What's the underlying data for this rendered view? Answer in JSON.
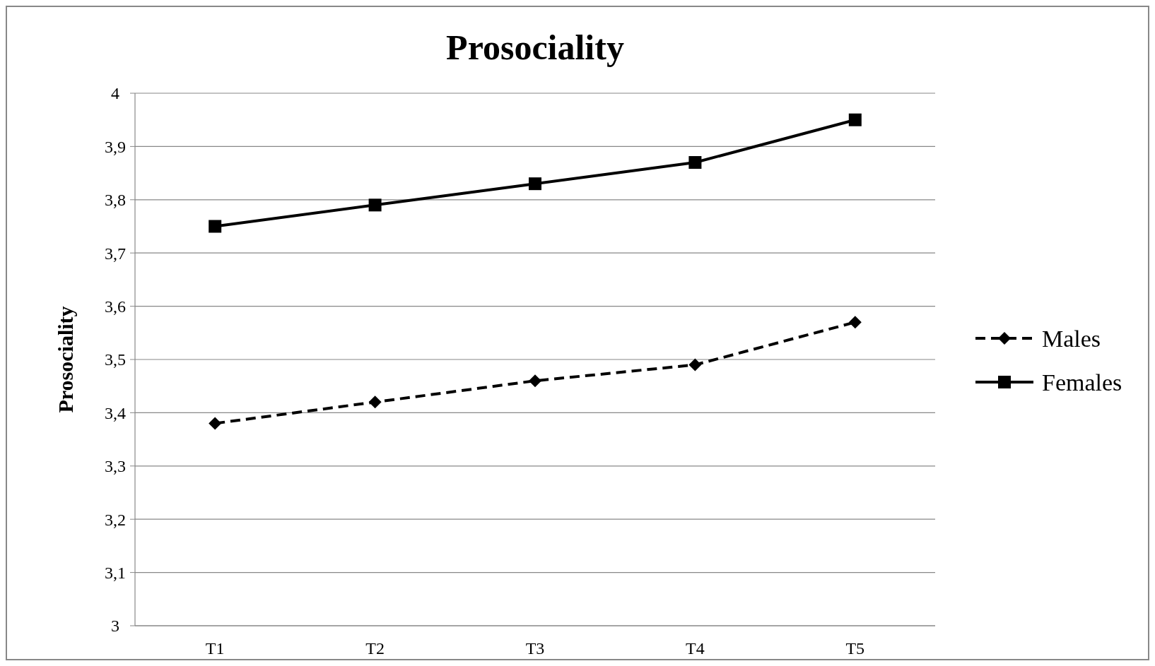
{
  "chart_data": {
    "type": "line",
    "title": "Prosociality",
    "ylabel": "Prosociality",
    "categories": [
      "T1",
      "T2",
      "T3",
      "T4",
      "T5"
    ],
    "series": [
      {
        "name": "Males",
        "color": "#000000",
        "values": [
          3.38,
          3.42,
          3.46,
          3.49,
          3.57
        ],
        "marker": "diamond",
        "line_style": "dashed"
      },
      {
        "name": "Females",
        "color": "#000000",
        "values": [
          3.75,
          3.79,
          3.83,
          3.87,
          3.95
        ],
        "marker": "square",
        "line_style": "solid"
      }
    ],
    "ylim": [
      3,
      4
    ],
    "yticks": [
      3,
      {
        "value": 3.1,
        "label": "3,1"
      },
      {
        "value": 3.2,
        "label": "3,2"
      },
      {
        "value": 3.3,
        "label": "3,3"
      },
      {
        "value": 3.4,
        "label": "3,4"
      },
      {
        "value": 3.5,
        "label": "3,5"
      },
      {
        "value": 3.6,
        "label": "3,6"
      },
      {
        "value": 3.7,
        "label": "3,7"
      },
      {
        "value": 3.8,
        "label": "3,8"
      },
      {
        "value": 3.9,
        "label": "3,9"
      },
      4
    ],
    "grid": "y",
    "legend": "right"
  }
}
